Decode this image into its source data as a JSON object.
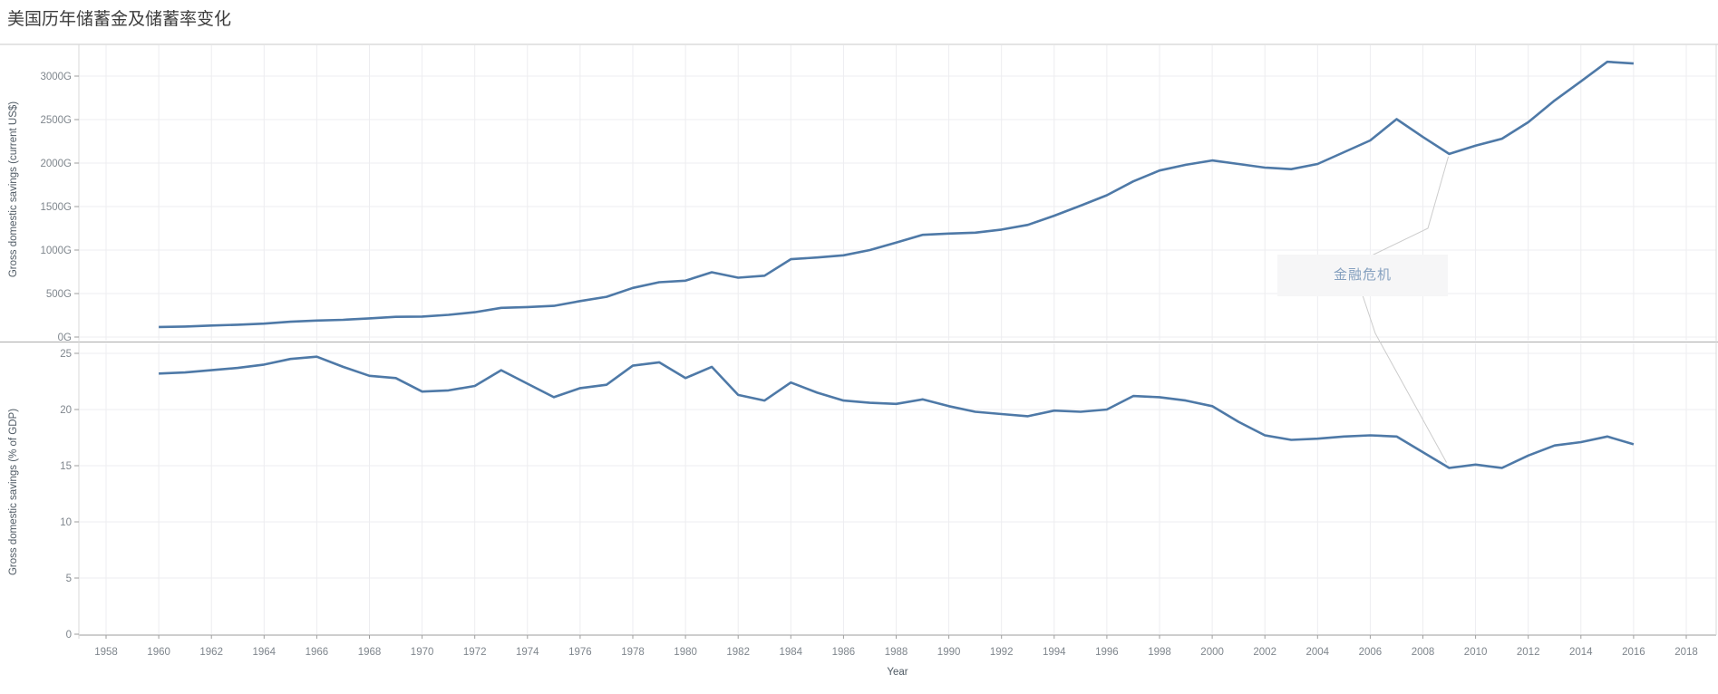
{
  "title": "美国历年储蓄金及储蓄率变化",
  "annotation": {
    "label": "金融危机"
  },
  "axes": {
    "x_title": "Year",
    "x_ticks": [
      1958,
      1960,
      1962,
      1964,
      1966,
      1968,
      1970,
      1972,
      1974,
      1976,
      1978,
      1980,
      1982,
      1984,
      1986,
      1988,
      1990,
      1992,
      1994,
      1996,
      1998,
      2000,
      2002,
      2004,
      2006,
      2008,
      2010,
      2012,
      2014,
      2016,
      2018
    ],
    "top_y_tick_labels": [
      "0G",
      "500G",
      "1000G",
      "1500G",
      "2000G",
      "2500G",
      "3000G"
    ],
    "top_y_tick_values": [
      0,
      500,
      1000,
      1500,
      2000,
      2500,
      3000
    ],
    "bottom_y_tick_labels": [
      "0",
      "5",
      "10",
      "15",
      "20",
      "25"
    ],
    "bottom_y_tick_values": [
      0,
      5,
      10,
      15,
      20,
      25
    ]
  },
  "colors": {
    "line": "#4e79a7",
    "grid": "#ededf0",
    "axis_line": "#9e9e9e",
    "pane_divider": "#ababab",
    "top_border": "#c9c9c9",
    "side_border": "#d9d9d9",
    "tick_label": "#7f868d",
    "axis_title": "#4f5a64",
    "title_text": "#3d3d3d",
    "annotation_text": "#85a0bf",
    "annotation_bg": "#f6f6f7",
    "connector": "#cccccc"
  },
  "chart_data": [
    {
      "type": "line",
      "pane": "top",
      "title": "美国历年储蓄金及储蓄率变化",
      "ylabel": "Gross domestic savings (current US$)",
      "xlabel": "Year",
      "unit": "G = billions of current US$",
      "x_range": [
        1957,
        2019
      ],
      "ylim": [
        0,
        3250
      ],
      "grid": true,
      "legend": "none",
      "x": [
        1960,
        1961,
        1962,
        1963,
        1964,
        1965,
        1966,
        1967,
        1968,
        1969,
        1970,
        1971,
        1972,
        1973,
        1974,
        1975,
        1976,
        1977,
        1978,
        1979,
        1980,
        1981,
        1982,
        1983,
        1984,
        1985,
        1986,
        1987,
        1988,
        1989,
        1990,
        1991,
        1992,
        1993,
        1994,
        1995,
        1996,
        1997,
        1998,
        1999,
        2000,
        2001,
        2002,
        2003,
        2004,
        2005,
        2006,
        2007,
        2008,
        2009,
        2010,
        2011,
        2012,
        2013,
        2014,
        2015,
        2016
      ],
      "values": [
        116,
        121,
        132,
        142,
        154,
        176,
        190,
        198,
        215,
        232,
        235,
        255,
        285,
        335,
        345,
        358,
        414,
        463,
        565,
        630,
        648,
        745,
        682,
        705,
        895,
        915,
        940,
        1000,
        1085,
        1175,
        1190,
        1200,
        1235,
        1290,
        1395,
        1510,
        1630,
        1790,
        1915,
        1980,
        2030,
        1990,
        1948,
        1930,
        1990,
        2125,
        2260,
        2505,
        2300,
        2105,
        2200,
        2280,
        2470,
        2720,
        2940,
        3165,
        3145
      ]
    },
    {
      "type": "line",
      "pane": "bottom",
      "title": "美国历年储蓄金及储蓄率变化",
      "ylabel": "Gross domestic savings (% of GDP)",
      "xlabel": "Year",
      "unit": "% of GDP",
      "x_range": [
        1957,
        2019
      ],
      "ylim": [
        0,
        25
      ],
      "grid": true,
      "legend": "none",
      "annotation": {
        "label": "金融危机",
        "points_to_year": 2009
      },
      "x": [
        1960,
        1961,
        1962,
        1963,
        1964,
        1965,
        1966,
        1967,
        1968,
        1969,
        1970,
        1971,
        1972,
        1973,
        1974,
        1975,
        1976,
        1977,
        1978,
        1979,
        1980,
        1981,
        1982,
        1983,
        1984,
        1985,
        1986,
        1987,
        1988,
        1989,
        1990,
        1991,
        1992,
        1993,
        1994,
        1995,
        1996,
        1997,
        1998,
        1999,
        2000,
        2001,
        2002,
        2003,
        2004,
        2005,
        2006,
        2007,
        2008,
        2009,
        2010,
        2011,
        2012,
        2013,
        2014,
        2015,
        2016
      ],
      "values": [
        23.2,
        23.3,
        23.5,
        23.7,
        24.0,
        24.5,
        24.7,
        23.8,
        23.0,
        22.8,
        21.6,
        21.7,
        22.1,
        23.5,
        22.3,
        21.1,
        21.9,
        22.2,
        23.9,
        24.2,
        22.8,
        23.8,
        21.3,
        20.8,
        22.4,
        21.5,
        20.8,
        20.6,
        20.5,
        20.9,
        20.3,
        19.8,
        19.6,
        19.4,
        19.9,
        19.8,
        20.0,
        21.2,
        21.1,
        20.8,
        20.3,
        18.9,
        17.7,
        17.3,
        17.4,
        17.6,
        17.7,
        17.6,
        16.2,
        14.8,
        15.1,
        14.8,
        15.9,
        16.8,
        17.1,
        17.6,
        16.9
      ]
    }
  ]
}
